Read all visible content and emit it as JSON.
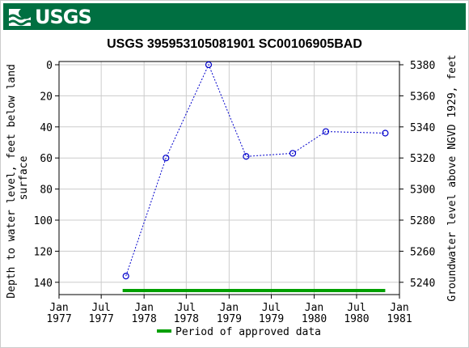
{
  "header": {
    "logo_text": "USGS",
    "background_color": "#006f41"
  },
  "chart_data": {
    "type": "scatter",
    "title": "USGS 395953105081901 SC00106905BAD",
    "ylabel_left": "Depth to water level, feet below land surface",
    "ylabel_left_lines": [
      "Depth to water level, feet below land",
      "surface"
    ],
    "ylabel_right": "Groundwater level above NGVD 1929, feet",
    "left_axis": {
      "min": 0,
      "max": 150,
      "inverted": true,
      "ticks": [
        0,
        20,
        40,
        60,
        80,
        100,
        120,
        140
      ]
    },
    "right_axis": {
      "min": 5230,
      "max": 5380,
      "ticks": [
        5240,
        5260,
        5280,
        5300,
        5320,
        5340,
        5360,
        5380
      ]
    },
    "x_axis": {
      "start": "1977-01-01",
      "end": "1981-01-01",
      "ticks": [
        {
          "date": "1977-01-01",
          "line1": "Jan",
          "line2": "1977"
        },
        {
          "date": "1977-07-01",
          "line1": "Jul",
          "line2": "1977"
        },
        {
          "date": "1978-01-01",
          "line1": "Jan",
          "line2": "1978"
        },
        {
          "date": "1978-07-01",
          "line1": "Jul",
          "line2": "1978"
        },
        {
          "date": "1979-01-01",
          "line1": "Jan",
          "line2": "1979"
        },
        {
          "date": "1979-07-01",
          "line1": "Jul",
          "line2": "1979"
        },
        {
          "date": "1980-01-01",
          "line1": "Jan",
          "line2": "1980"
        },
        {
          "date": "1980-07-01",
          "line1": "Jul",
          "line2": "1980"
        },
        {
          "date": "1981-01-01",
          "line1": "Jan",
          "line2": "1981"
        }
      ]
    },
    "series": [
      {
        "points": [
          {
            "date": "1977-10-15",
            "depth": 136
          },
          {
            "date": "1978-04-05",
            "depth": 60
          },
          {
            "date": "1978-10-05",
            "depth": 0
          },
          {
            "date": "1979-03-15",
            "depth": 59
          },
          {
            "date": "1979-10-01",
            "depth": 57
          },
          {
            "date": "1980-02-20",
            "depth": 43
          },
          {
            "date": "1980-11-01",
            "depth": 44
          }
        ],
        "color": "#0000cc"
      }
    ],
    "approved_period": {
      "start": "1977-10-01",
      "end": "1980-11-01",
      "color": "#00a000"
    },
    "legend": {
      "label": "Period of approved data",
      "position": "bottom"
    },
    "grid": true
  }
}
